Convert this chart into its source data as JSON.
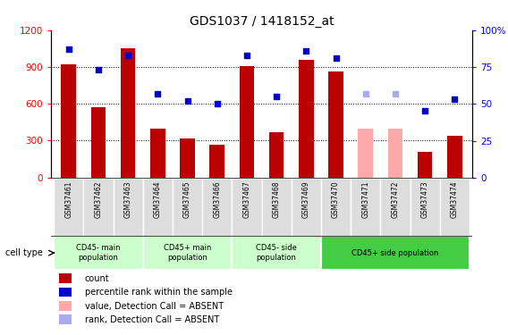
{
  "title": "GDS1037 / 1418152_at",
  "samples": [
    "GSM37461",
    "GSM37462",
    "GSM37463",
    "GSM37464",
    "GSM37465",
    "GSM37466",
    "GSM37467",
    "GSM37468",
    "GSM37469",
    "GSM37470",
    "GSM37471",
    "GSM37472",
    "GSM37473",
    "GSM37474"
  ],
  "counts": [
    920,
    575,
    1050,
    400,
    320,
    270,
    910,
    370,
    960,
    860,
    400,
    400,
    210,
    340
  ],
  "ranks": [
    87,
    73,
    83,
    57,
    52,
    50,
    83,
    55,
    86,
    81,
    57,
    57,
    45,
    53
  ],
  "absent_counts": [
    false,
    false,
    false,
    false,
    false,
    false,
    false,
    false,
    false,
    false,
    true,
    true,
    false,
    false
  ],
  "absent_ranks": [
    false,
    false,
    false,
    false,
    false,
    false,
    false,
    false,
    false,
    false,
    true,
    true,
    false,
    false
  ],
  "bar_color_normal": "#bb0000",
  "bar_color_absent": "#ffaaaa",
  "rank_color_normal": "#0000cc",
  "rank_color_absent": "#aaaaee",
  "ylim_left": [
    0,
    1200
  ],
  "ylim_right": [
    0,
    100
  ],
  "yticks_left": [
    0,
    300,
    600,
    900,
    1200
  ],
  "yticks_right": [
    0,
    25,
    50,
    75,
    100
  ],
  "cell_type_groups": [
    {
      "label": "CD45- main\npopulation",
      "start": 0,
      "end": 3,
      "color": "#ccffcc"
    },
    {
      "label": "CD45+ main\npopulation",
      "start": 3,
      "end": 6,
      "color": "#ccffcc"
    },
    {
      "label": "CD45- side\npopulation",
      "start": 6,
      "end": 9,
      "color": "#ccffcc"
    },
    {
      "label": "CD45+ side population",
      "start": 9,
      "end": 14,
      "color": "#44cc44"
    }
  ],
  "legend_items": [
    {
      "label": "count",
      "color": "#bb0000",
      "type": "square"
    },
    {
      "label": "percentile rank within the sample",
      "color": "#0000cc",
      "type": "square"
    },
    {
      "label": "value, Detection Call = ABSENT",
      "color": "#ffaaaa",
      "type": "square"
    },
    {
      "label": "rank, Detection Call = ABSENT",
      "color": "#aaaaee",
      "type": "square"
    }
  ]
}
